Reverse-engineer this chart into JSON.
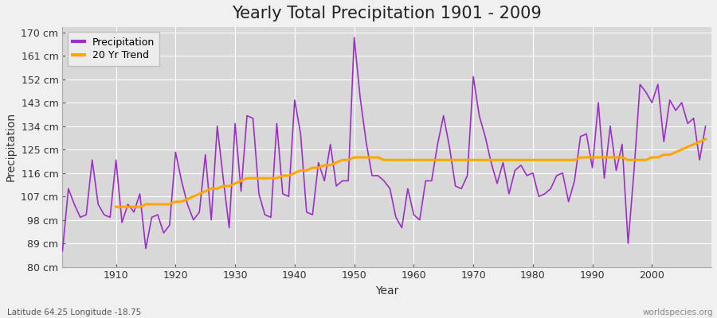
{
  "title": "Yearly Total Precipitation 1901 - 2009",
  "xlabel": "Year",
  "ylabel": "Precipitation",
  "subtitle": "Latitude 64.25 Longitude -18.75",
  "watermark": "worldspecies.org",
  "years": [
    1901,
    1902,
    1903,
    1904,
    1905,
    1906,
    1907,
    1908,
    1909,
    1910,
    1911,
    1912,
    1913,
    1914,
    1915,
    1916,
    1917,
    1918,
    1919,
    1920,
    1921,
    1922,
    1923,
    1924,
    1925,
    1926,
    1927,
    1928,
    1929,
    1930,
    1931,
    1932,
    1933,
    1934,
    1935,
    1936,
    1937,
    1938,
    1939,
    1940,
    1941,
    1942,
    1943,
    1944,
    1945,
    1946,
    1947,
    1948,
    1949,
    1950,
    1951,
    1952,
    1953,
    1954,
    1955,
    1956,
    1957,
    1958,
    1959,
    1960,
    1961,
    1962,
    1963,
    1964,
    1965,
    1966,
    1967,
    1968,
    1969,
    1970,
    1971,
    1972,
    1973,
    1974,
    1975,
    1976,
    1977,
    1978,
    1979,
    1980,
    1981,
    1982,
    1983,
    1984,
    1985,
    1986,
    1987,
    1988,
    1989,
    1990,
    1991,
    1992,
    1993,
    1994,
    1995,
    1996,
    1997,
    1998,
    1999,
    2000,
    2001,
    2002,
    2003,
    2004,
    2005,
    2006,
    2007,
    2008,
    2009
  ],
  "precipitation": [
    86,
    110,
    104,
    99,
    100,
    121,
    104,
    100,
    99,
    121,
    97,
    104,
    101,
    108,
    87,
    99,
    100,
    93,
    96,
    124,
    113,
    104,
    98,
    101,
    123,
    98,
    134,
    114,
    95,
    135,
    109,
    138,
    137,
    108,
    100,
    99,
    135,
    108,
    107,
    144,
    131,
    101,
    100,
    120,
    113,
    127,
    111,
    113,
    113,
    168,
    145,
    128,
    115,
    115,
    113,
    110,
    99,
    95,
    110,
    100,
    98,
    113,
    113,
    127,
    138,
    126,
    111,
    110,
    115,
    153,
    138,
    130,
    120,
    112,
    120,
    108,
    117,
    119,
    115,
    116,
    107,
    108,
    110,
    115,
    116,
    105,
    113,
    130,
    131,
    118,
    143,
    114,
    134,
    117,
    127,
    89,
    117,
    150,
    147,
    143,
    150,
    128,
    144,
    140,
    143,
    135,
    137,
    121,
    134
  ],
  "trend_years": [
    1910,
    1911,
    1912,
    1913,
    1914,
    1915,
    1916,
    1917,
    1918,
    1919,
    1920,
    1921,
    1922,
    1923,
    1924,
    1925,
    1926,
    1927,
    1928,
    1929,
    1930,
    1931,
    1932,
    1933,
    1934,
    1935,
    1936,
    1937,
    1938,
    1939,
    1940,
    1941,
    1942,
    1943,
    1944,
    1945,
    1946,
    1947,
    1948,
    1949,
    1950,
    1951,
    1952,
    1953,
    1954,
    1955,
    1956,
    1957,
    1958,
    1959,
    1960,
    1961,
    1962,
    1963,
    1964,
    1965,
    1966,
    1967,
    1968,
    1969,
    1970,
    1971,
    1972,
    1973,
    1974,
    1975,
    1976,
    1977,
    1978,
    1979,
    1980,
    1981,
    1982,
    1983,
    1984,
    1985,
    1986,
    1987,
    1988,
    1989,
    1990,
    1991,
    1992,
    1993,
    1994,
    1995,
    1996,
    1997,
    1998,
    1999,
    2000,
    2001,
    2002,
    2003,
    2004,
    2005,
    2006,
    2007,
    2008,
    2009
  ],
  "trend": [
    103,
    103,
    103,
    103,
    103,
    104,
    104,
    104,
    104,
    104,
    105,
    105,
    106,
    107,
    108,
    109,
    110,
    110,
    111,
    111,
    112,
    113,
    114,
    114,
    114,
    114,
    114,
    114,
    115,
    115,
    116,
    117,
    117,
    118,
    118,
    119,
    119,
    120,
    121,
    121,
    122,
    122,
    122,
    122,
    122,
    121,
    121,
    121,
    121,
    121,
    121,
    121,
    121,
    121,
    121,
    121,
    121,
    121,
    121,
    121,
    121,
    121,
    121,
    121,
    121,
    121,
    121,
    121,
    121,
    121,
    121,
    121,
    121,
    121,
    121,
    121,
    121,
    121,
    122,
    122,
    122,
    122,
    122,
    122,
    122,
    122,
    121,
    121,
    121,
    121,
    122,
    122,
    123,
    123,
    124,
    125,
    126,
    127,
    128,
    129
  ],
  "precip_color": "#9B30C8",
  "trend_color": "#FFA500",
  "fig_background": "#F0F0F0",
  "plot_background": "#D8D8D8",
  "grid_color": "#FFFFFF",
  "ylim": [
    80,
    172
  ],
  "yticks": [
    80,
    89,
    98,
    107,
    116,
    125,
    134,
    143,
    152,
    161,
    170
  ],
  "ytick_labels": [
    "80 cm",
    "89 cm",
    "98 cm",
    "107 cm",
    "116 cm",
    "125 cm",
    "134 cm",
    "143 cm",
    "152 cm",
    "161 cm",
    "170 cm"
  ],
  "xticks": [
    1910,
    1920,
    1930,
    1940,
    1950,
    1960,
    1970,
    1980,
    1990,
    2000
  ],
  "xlim": [
    1901,
    2010
  ],
  "title_fontsize": 15,
  "axis_label_fontsize": 10,
  "tick_fontsize": 9,
  "legend_fontsize": 9
}
